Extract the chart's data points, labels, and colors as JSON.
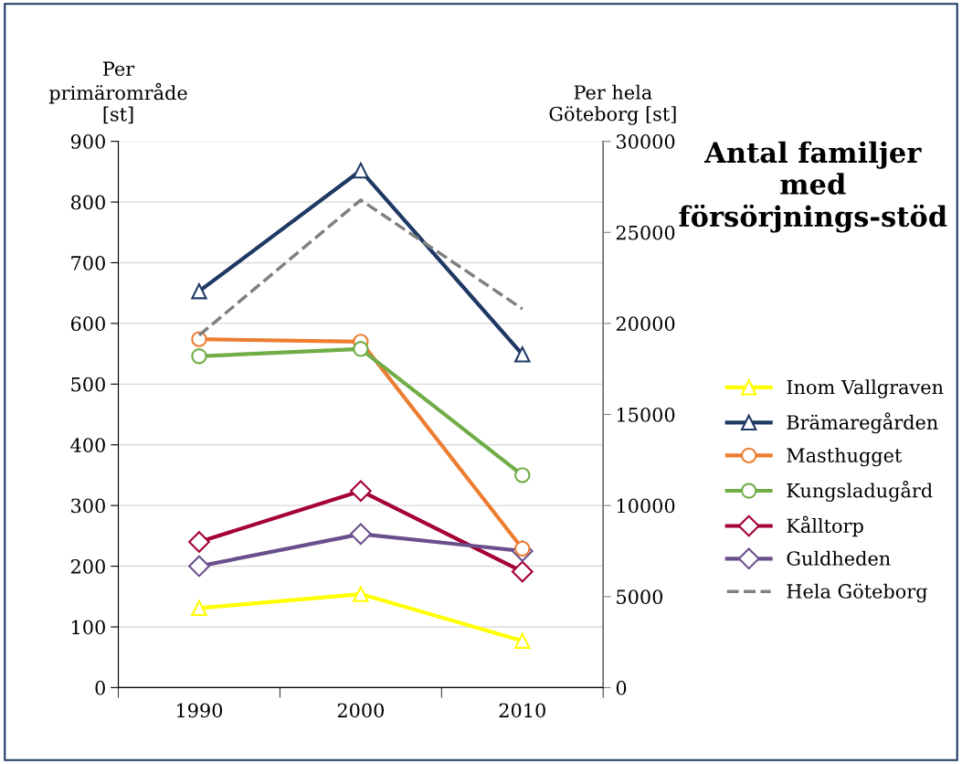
{
  "chart_data": {
    "type": "line",
    "title": "Antal familjer med försörjnings-stöd",
    "ylabel": "Per primärområde [st]",
    "y2label": "Per hela Göteborg [st]",
    "categories": [
      "1990",
      "2000",
      "2010"
    ],
    "ylim": [
      0,
      900
    ],
    "yticks": [
      0,
      100,
      200,
      300,
      400,
      500,
      600,
      700,
      800,
      900
    ],
    "y2lim": [
      0,
      30000
    ],
    "y2ticks": [
      0,
      5000,
      10000,
      15000,
      20000,
      25000,
      30000
    ],
    "grid": "y",
    "legend": "right",
    "series": [
      {
        "name": "Inom Vallgraven",
        "color": "#ffff00",
        "marker": "triangle",
        "values": [
          131,
          154,
          77
        ]
      },
      {
        "name": "Brämaregården",
        "color": "#1f3864",
        "marker": "triangle",
        "values": [
          653,
          852,
          549
        ]
      },
      {
        "name": "Masthugget",
        "color": "#ed7d31",
        "marker": "circle",
        "values": [
          574,
          570,
          229
        ]
      },
      {
        "name": "Kungsladugård",
        "color": "#70ad47",
        "marker": "circle",
        "values": [
          546,
          558,
          350
        ]
      },
      {
        "name": "Kålltorp",
        "color": "#a50034",
        "marker": "diamond",
        "values": [
          240,
          324,
          191
        ]
      },
      {
        "name": "Guldheden",
        "color": "#6a4f8c",
        "marker": "diamond",
        "values": [
          200,
          253,
          225
        ]
      },
      {
        "name": "Hela Göteborg",
        "color": "#808080",
        "marker": "none",
        "line_style": "dashed",
        "axis": "y2",
        "values": [
          19350,
          26780,
          20800
        ]
      }
    ]
  }
}
